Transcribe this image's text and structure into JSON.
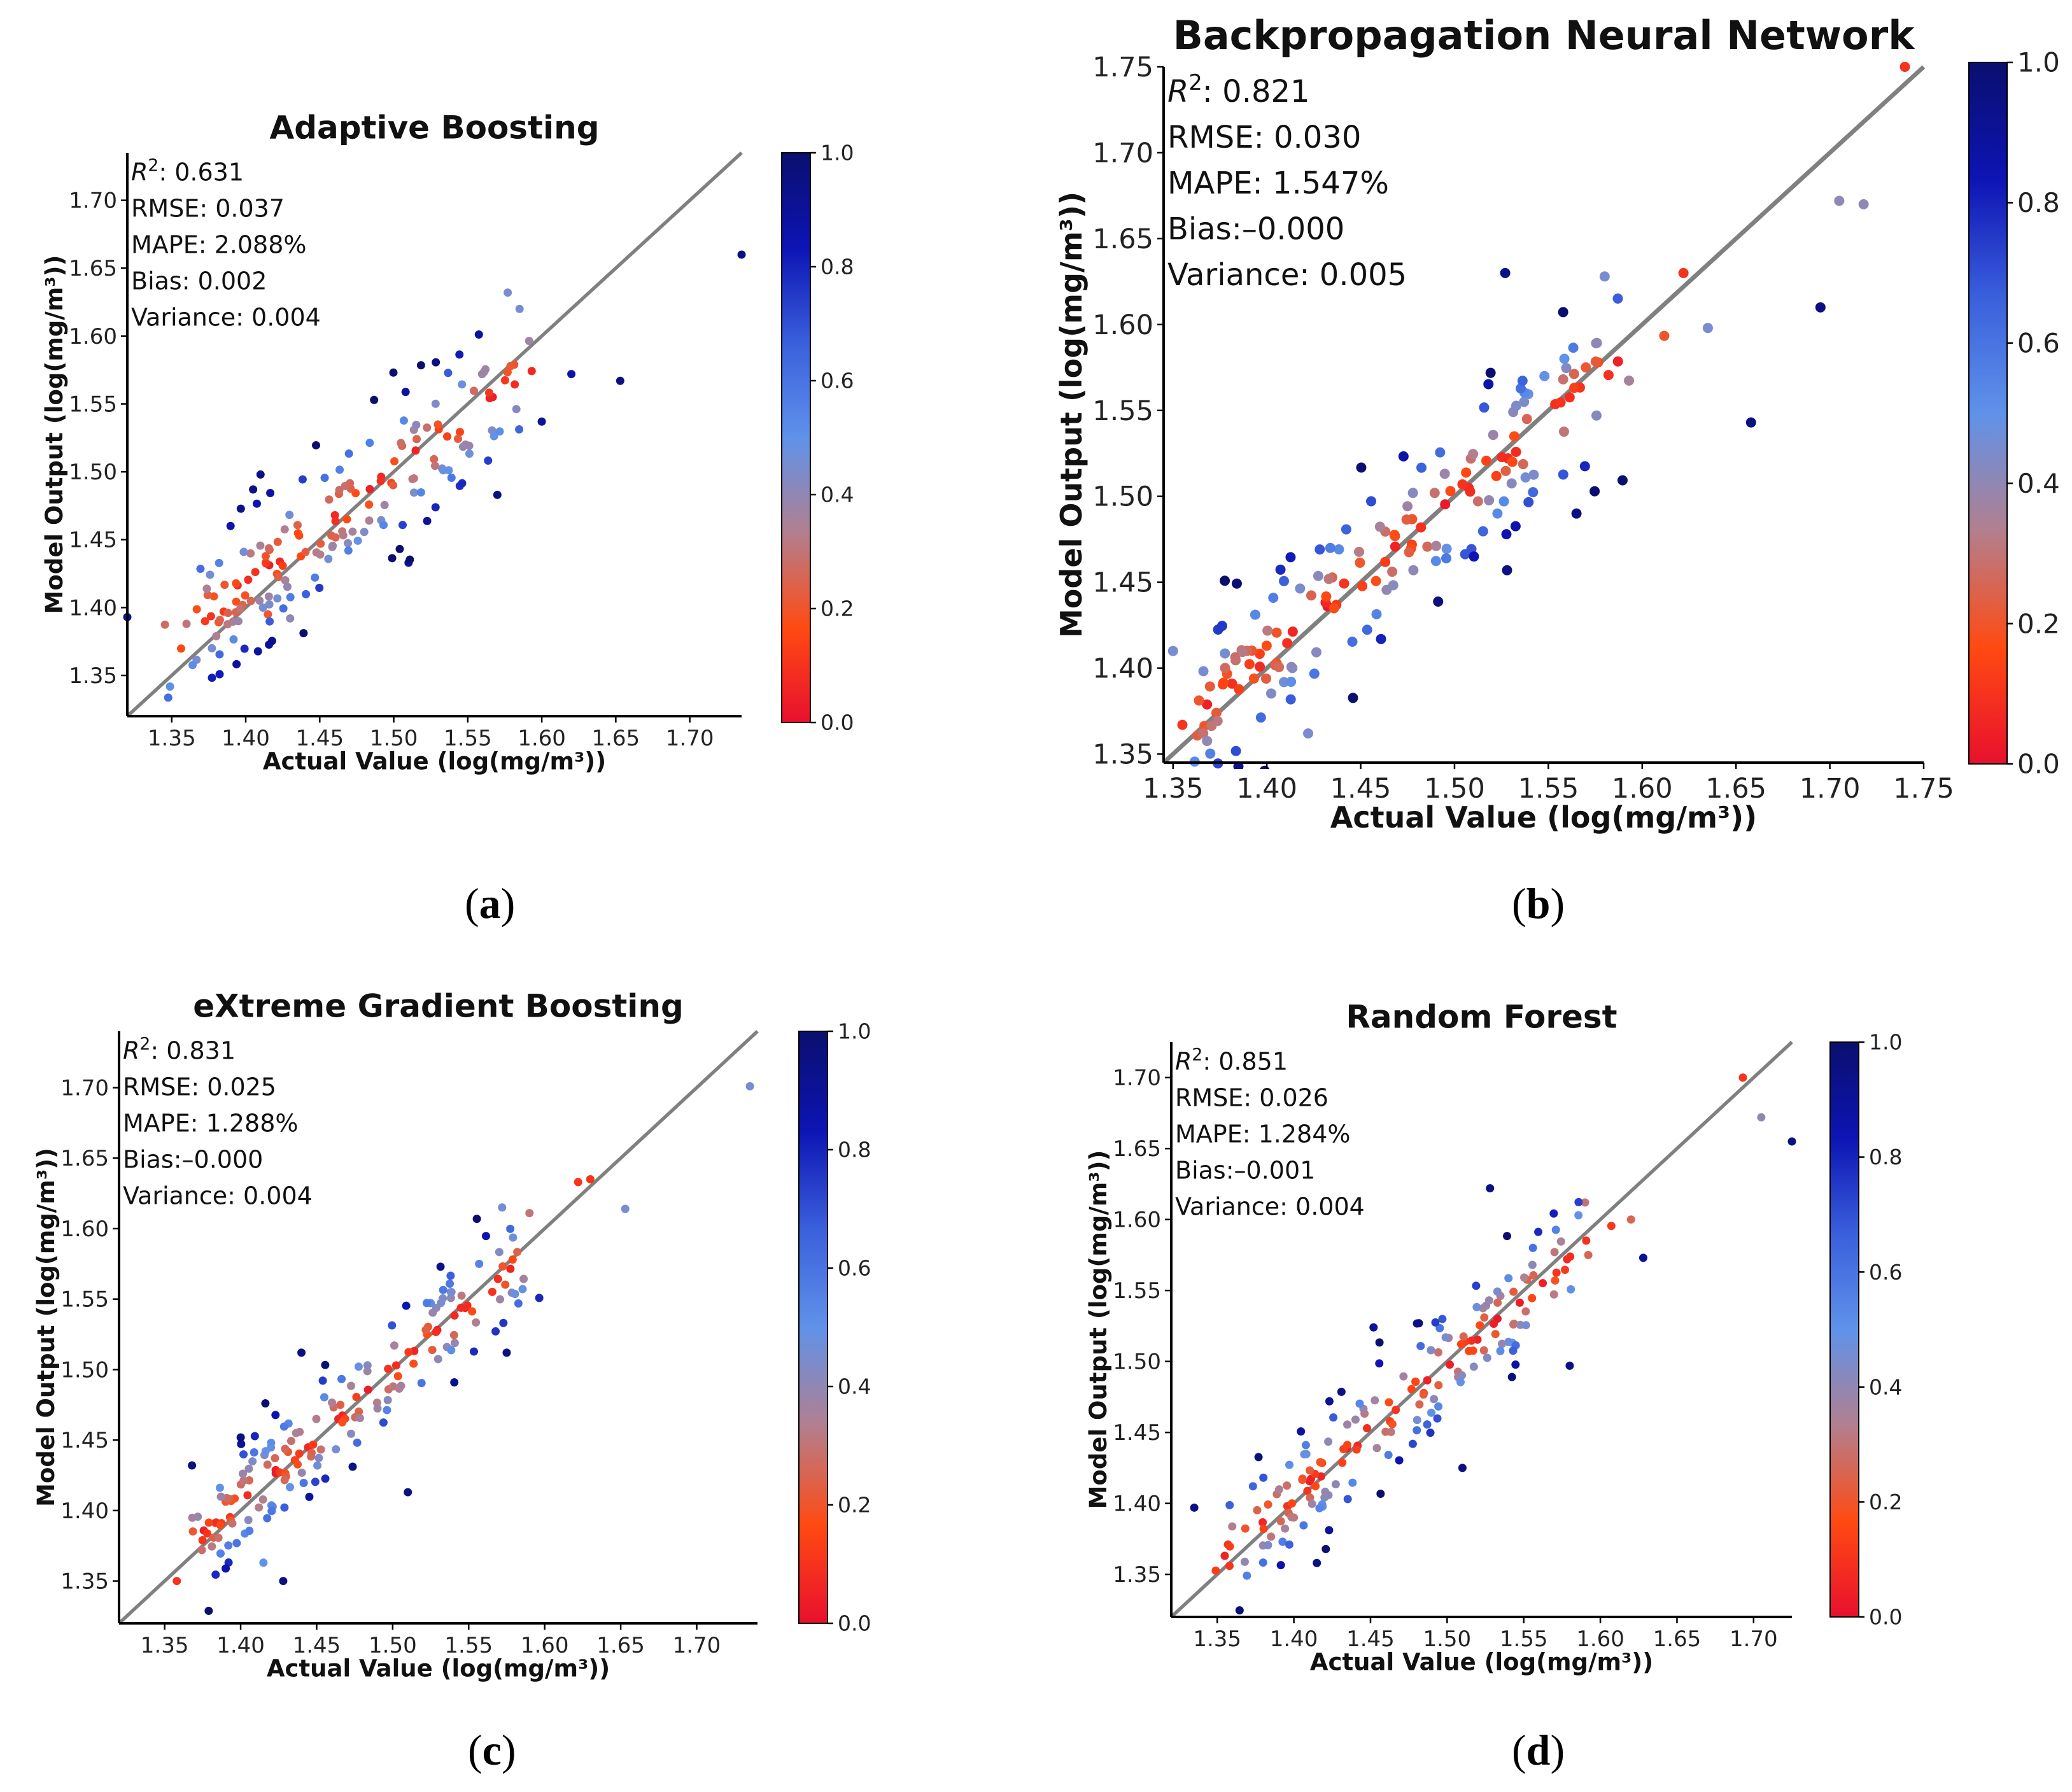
{
  "figure": {
    "panel_labels": {
      "a": "a",
      "b": "b",
      "c": "c",
      "d": "d"
    }
  },
  "colors": {
    "identity_line": "#808080",
    "colormap": [
      "#e8102e",
      "#ff4a12",
      "#b27f8f",
      "#5f92ea",
      "#3a5fdc",
      "#0d14b4",
      "#0a0f6e"
    ]
  },
  "chart_data": [
    {
      "type": "scatter",
      "title": "Adaptive Boosting",
      "xlabel": "Actual Value (log(mg/m³))",
      "ylabel": "Model Output (log(mg/m³))",
      "xlim": [
        1.32,
        1.735
      ],
      "ylim": [
        1.32,
        1.735
      ],
      "xticks": [
        "1.35",
        "1.40",
        "1.45",
        "1.50",
        "1.55",
        "1.60",
        "1.65",
        "1.70"
      ],
      "yticks": [
        "1.35",
        "1.40",
        "1.45",
        "1.50",
        "1.55",
        "1.60",
        "1.65",
        "1.70"
      ],
      "colorbar_ticks": [
        "0.0",
        "0.2",
        "0.4",
        "0.6",
        "0.8",
        "1.0"
      ],
      "metrics": {
        "r2_label": "R",
        "r2_value": ": 0.631",
        "rmse": "RMSE: 0.037",
        "mape": "MAPE: 2.088%",
        "bias": "Bias: 0.002",
        "variance": "Variance: 0.004"
      },
      "r2": 0.631,
      "rmse": 0.037,
      "bias": 0.002,
      "notable_points": [
        [
          1.735,
          1.66,
          0.95
        ],
        [
          1.32,
          1.393,
          0.9
        ],
        [
          1.36,
          1.388,
          0.3
        ],
        [
          1.653,
          1.567,
          0.95
        ],
        [
          1.62,
          1.572,
          0.85
        ],
        [
          1.585,
          1.62,
          0.45
        ],
        [
          1.577,
          1.632,
          0.45
        ],
        [
          1.6,
          1.537,
          0.9
        ],
        [
          1.41,
          1.498,
          0.95
        ],
        [
          1.405,
          1.487,
          0.95
        ],
        [
          1.57,
          1.483,
          0.95
        ],
        [
          1.51,
          1.433,
          0.9
        ],
        [
          1.415,
          1.395,
          0.2
        ],
        [
          1.43,
          1.392,
          0.4
        ]
      ]
    },
    {
      "type": "scatter",
      "title": "Backpropagation Neural Network",
      "xlabel": "Actual Value (log(mg/m³))",
      "ylabel": "Model Output (log(mg/m³))",
      "xlim": [
        1.345,
        1.75
      ],
      "ylim": [
        1.345,
        1.75
      ],
      "xticks": [
        "1.35",
        "1.40",
        "1.45",
        "1.50",
        "1.55",
        "1.60",
        "1.65",
        "1.70",
        "1.75"
      ],
      "yticks": [
        "1.35",
        "1.40",
        "1.45",
        "1.50",
        "1.55",
        "1.60",
        "1.65",
        "1.70",
        "1.75"
      ],
      "colorbar_ticks": [
        "0.0",
        "0.2",
        "0.4",
        "0.6",
        "0.8",
        "1.0"
      ],
      "metrics": {
        "r2_label": "R",
        "r2_value": ": 0.821",
        "rmse": "RMSE: 0.030",
        "mape": "MAPE: 1.547%",
        "bias": "Bias:–0.000",
        "variance": "Variance: 0.005"
      },
      "r2": 0.821,
      "rmse": 0.03,
      "bias": 0.0,
      "notable_points": [
        [
          1.74,
          1.75,
          0.1
        ],
        [
          1.705,
          1.672,
          0.4
        ],
        [
          1.718,
          1.67,
          0.4
        ],
        [
          1.695,
          1.61,
          0.95
        ],
        [
          1.658,
          1.543,
          0.95
        ],
        [
          1.527,
          1.63,
          0.95
        ],
        [
          1.565,
          1.49,
          0.95
        ],
        [
          1.528,
          1.457,
          0.95
        ],
        [
          1.422,
          1.362,
          0.45
        ],
        [
          1.355,
          1.367,
          0.1
        ],
        [
          1.35,
          1.41,
          0.45
        ],
        [
          1.622,
          1.63,
          0.1
        ],
        [
          1.635,
          1.598,
          0.45
        ],
        [
          1.58,
          1.628,
          0.45
        ]
      ]
    },
    {
      "type": "scatter",
      "title": "eXtreme Gradient Boosting",
      "xlabel": "Actual Value (log(mg/m³))",
      "ylabel": "Model Output (log(mg/m³))",
      "xlim": [
        1.32,
        1.74
      ],
      "ylim": [
        1.32,
        1.74
      ],
      "xticks": [
        "1.35",
        "1.40",
        "1.45",
        "1.50",
        "1.55",
        "1.60",
        "1.65",
        "1.70"
      ],
      "yticks": [
        "1.35",
        "1.40",
        "1.45",
        "1.50",
        "1.55",
        "1.60",
        "1.65",
        "1.70"
      ],
      "colorbar_ticks": [
        "0.0",
        "0.2",
        "0.4",
        "0.6",
        "0.8",
        "1.0"
      ],
      "metrics": {
        "r2_label": "R",
        "r2_value": ": 0.831",
        "rmse": "RMSE: 0.025",
        "mape": "MAPE: 1.288%",
        "bias": "Bias:–0.000",
        "variance": "Variance: 0.004"
      },
      "r2": 0.831,
      "rmse": 0.025,
      "bias": 0.0,
      "notable_points": [
        [
          1.735,
          1.701,
          0.45
        ],
        [
          1.358,
          1.35,
          0.1
        ],
        [
          1.428,
          1.35,
          0.95
        ],
        [
          1.368,
          1.432,
          0.95
        ],
        [
          1.653,
          1.614,
          0.45
        ],
        [
          1.622,
          1.633,
          0.1
        ],
        [
          1.63,
          1.635,
          0.1
        ],
        [
          1.51,
          1.413,
          0.95
        ],
        [
          1.44,
          1.512,
          0.95
        ],
        [
          1.575,
          1.512,
          0.95
        ],
        [
          1.415,
          1.363,
          0.5
        ],
        [
          1.572,
          1.615,
          0.45
        ],
        [
          1.59,
          1.611,
          0.3
        ]
      ]
    },
    {
      "type": "scatter",
      "title": "Random Forest",
      "xlabel": "Actual Value (log(mg/m³))",
      "ylabel": "Model Output (log(mg/m³))",
      "xlim": [
        1.32,
        1.725
      ],
      "ylim": [
        1.32,
        1.725
      ],
      "xticks": [
        "1.35",
        "1.40",
        "1.45",
        "1.50",
        "1.55",
        "1.60",
        "1.65",
        "1.70"
      ],
      "yticks": [
        "1.35",
        "1.40",
        "1.45",
        "1.50",
        "1.55",
        "1.60",
        "1.65",
        "1.70"
      ],
      "colorbar_ticks": [
        "0.0",
        "0.2",
        "0.4",
        "0.6",
        "0.8",
        "1.0"
      ],
      "metrics": {
        "r2_label": "R",
        "r2_value": ": 0.851",
        "rmse": "RMSE: 0.026",
        "mape": "MAPE: 1.284%",
        "bias": "Bias:–0.001",
        "variance": "Variance: 0.004"
      },
      "r2": 0.851,
      "rmse": 0.026,
      "bias": -0.001,
      "notable_points": [
        [
          1.693,
          1.7,
          0.1
        ],
        [
          1.705,
          1.672,
          0.4
        ],
        [
          1.725,
          1.655,
          0.95
        ],
        [
          1.335,
          1.397,
          0.95
        ],
        [
          1.358,
          1.356,
          0.1
        ],
        [
          1.357,
          1.371,
          0.1
        ],
        [
          1.415,
          1.358,
          0.95
        ],
        [
          1.528,
          1.622,
          0.95
        ],
        [
          1.51,
          1.425,
          0.95
        ],
        [
          1.58,
          1.497,
          0.95
        ],
        [
          1.628,
          1.573,
          0.9
        ],
        [
          1.62,
          1.6,
          0.25
        ],
        [
          1.59,
          1.612,
          0.3
        ],
        [
          1.452,
          1.524,
          0.9
        ]
      ]
    }
  ]
}
